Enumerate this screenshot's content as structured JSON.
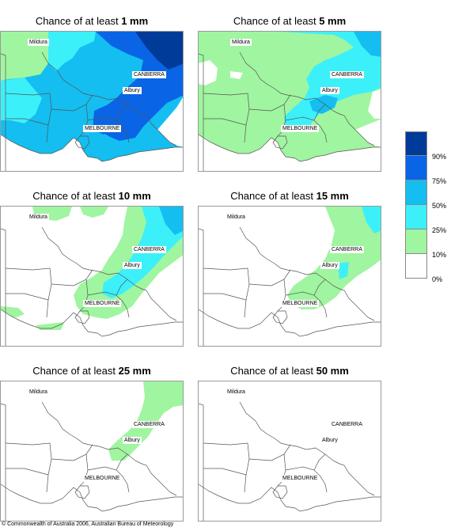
{
  "panels": [
    {
      "prefix": "Chance of at least ",
      "amount": "1 mm"
    },
    {
      "prefix": "Chance of at least ",
      "amount": "5 mm"
    },
    {
      "prefix": "Chance of at least ",
      "amount": "10 mm"
    },
    {
      "prefix": "Chance of at least ",
      "amount": "15 mm"
    },
    {
      "prefix": "Chance of at least ",
      "amount": "25 mm"
    },
    {
      "prefix": "Chance of at least ",
      "amount": "50 mm"
    }
  ],
  "places": {
    "mildura": "Mildura",
    "canberra": "CANBERRA",
    "albury": "Albury",
    "melbourne": "MELBOURNE"
  },
  "legend": {
    "labels": [
      "90%",
      "75%",
      "50%",
      "25%",
      "10%",
      "0%"
    ],
    "colors": [
      "#003b9a",
      "#0a64e6",
      "#14bef0",
      "#3cf0fa",
      "#a0f5a0",
      "#ffffff"
    ]
  },
  "copyright": "© Commonwealth of Australia 2006, Australian Bureau of Meteorology"
}
